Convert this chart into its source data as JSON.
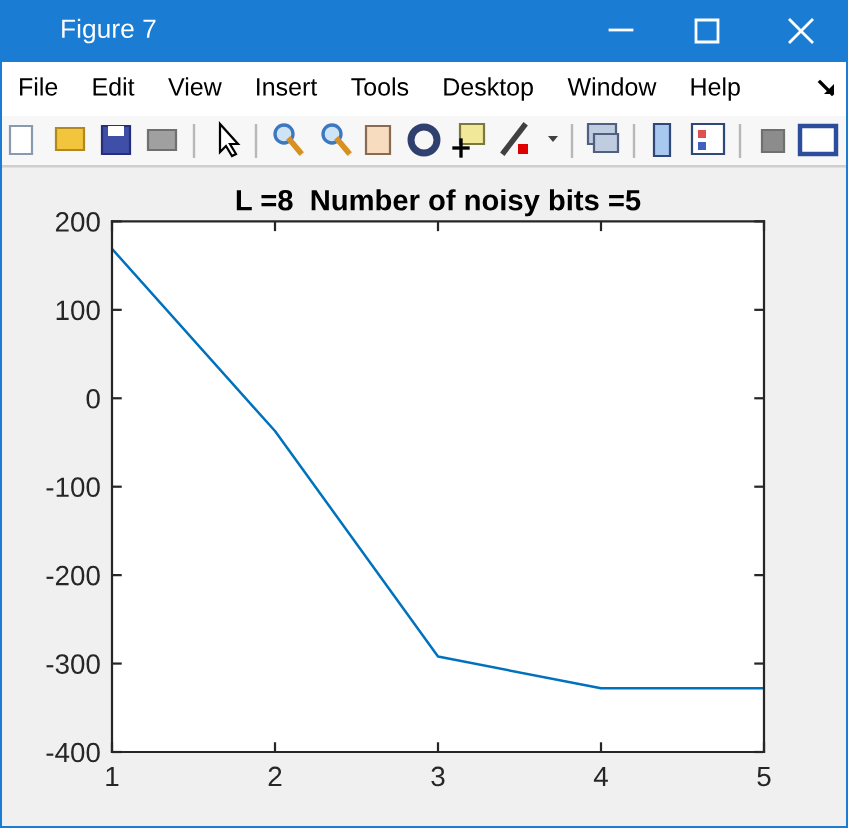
{
  "chart_data": {
    "type": "line",
    "title": "L =8  Number of noisy bits =5",
    "x": [
      1,
      2,
      3,
      4,
      5
    ],
    "values": [
      169,
      -37,
      -292,
      -328,
      -328
    ],
    "color": "#0072bd",
    "xlim": [
      1,
      5
    ],
    "ylim": [
      -400,
      200
    ],
    "xticks": [
      1,
      2,
      3,
      4,
      5
    ],
    "yticks": [
      -400,
      -300,
      -200,
      -100,
      0,
      100,
      200
    ],
    "annotations": [
      "Figure 7",
      "File",
      "Edit",
      "View",
      "Insert",
      "Tools",
      "Desktop",
      "Window",
      "Help"
    ]
  }
}
